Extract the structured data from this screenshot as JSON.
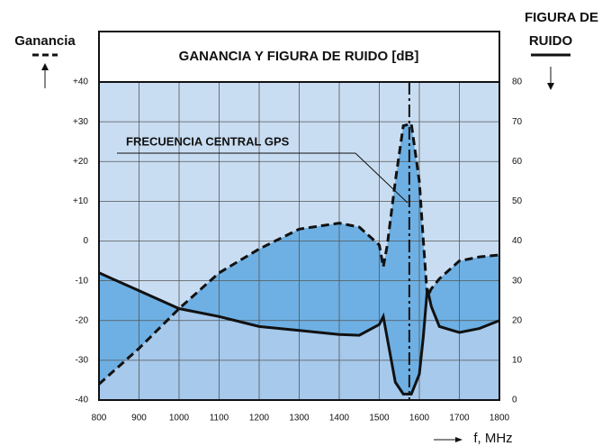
{
  "chart_data": {
    "type": "line",
    "title": "GANANCIA Y FIGURA DE RUIDO [dB]",
    "y_label": "Ganancia",
    "y2_label_lines": [
      "FIGURA DE",
      "RUIDO"
    ],
    "x_label": "f, MHz",
    "annotation": {
      "text": "FRECUENCIA CENTRAL GPS",
      "x": 1575
    },
    "x": [
      800,
      900,
      1000,
      1100,
      1200,
      1300,
      1400,
      1450,
      1500,
      1510,
      1520,
      1540,
      1560,
      1580,
      1600,
      1610,
      1620,
      1630,
      1650,
      1700,
      1750,
      1800
    ],
    "series": [
      {
        "name": "Ganancia",
        "color": "#111111",
        "dash": true,
        "axis": "y",
        "values": [
          -36,
          -27,
          -17,
          -8,
          -2,
          3,
          4.5,
          3.5,
          -1,
          -6.5,
          -1,
          15,
          29,
          29.5,
          15,
          0,
          -14,
          -12,
          -9.5,
          -5,
          -4,
          -3.5
        ]
      },
      {
        "name": "Figura de ruido",
        "color": "#111111",
        "dash": false,
        "axis": "y2",
        "values": [
          32,
          27.5,
          23,
          21,
          18.5,
          17.5,
          16.5,
          16.3,
          19,
          21,
          15.5,
          4.5,
          1.5,
          1.5,
          6.5,
          16,
          28,
          23.5,
          18.5,
          17,
          18,
          20
        ]
      }
    ],
    "xlim": [
      800,
      1800
    ],
    "xticks": [
      800,
      900,
      1000,
      1100,
      1200,
      1300,
      1400,
      1500,
      1600,
      1700,
      1800
    ],
    "ylim": [
      -40,
      40
    ],
    "yticks": [
      -40,
      -30,
      -20,
      -10,
      0,
      {
        "value": 10,
        "label": "+10"
      },
      {
        "value": 20,
        "label": "+20"
      },
      {
        "value": 30,
        "label": "+30"
      },
      {
        "value": 40,
        "label": "+40"
      }
    ],
    "y2lim": [
      0,
      80
    ],
    "y2ticks": [
      0,
      10,
      20,
      30,
      40,
      50,
      60,
      70,
      80
    ],
    "grid": true
  }
}
